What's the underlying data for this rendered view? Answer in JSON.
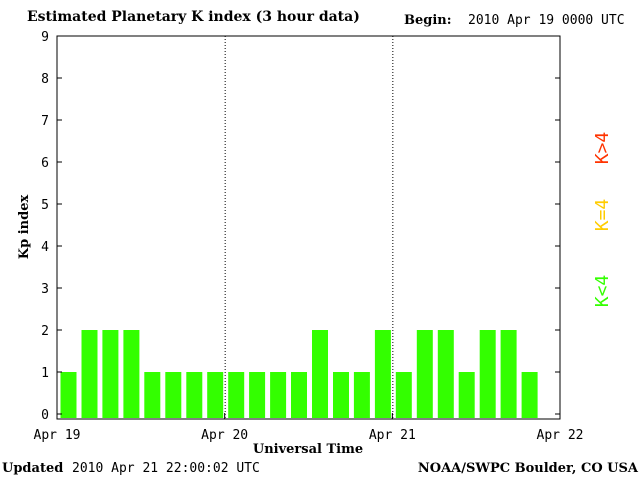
{
  "header": {
    "title": "Estimated Planetary K index (3 hour data)",
    "begin_label": "Begin:",
    "begin_value": "2010 Apr 19 0000 UTC"
  },
  "footer": {
    "updated_label": "Updated",
    "updated_value": "2010 Apr 21 22:00:02 UTC",
    "credit": "NOAA/SWPC Boulder, CO USA"
  },
  "legend": [
    {
      "label": "K>4",
      "color": "#ff3300"
    },
    {
      "label": "K=4",
      "color": "#ffcc00"
    },
    {
      "label": "K<4",
      "color": "#33ff00"
    }
  ],
  "chart_data": {
    "type": "bar",
    "title": "Estimated Planetary K index (3 hour data)",
    "xlabel": "Universal Time",
    "ylabel": "Kp index",
    "x_ticks": [
      "Apr 19",
      "Apr 20",
      "Apr 21",
      "Apr 22"
    ],
    "y_ticks": [
      "0",
      "1",
      "2",
      "3",
      "4",
      "5",
      "6",
      "7",
      "8",
      "9"
    ],
    "ylim": [
      0,
      9
    ],
    "xlim_intervals": 24,
    "interval_hours": 3,
    "values": [
      1,
      2,
      2,
      2,
      1,
      1,
      1,
      1,
      1,
      1,
      1,
      1,
      2,
      1,
      1,
      2,
      1,
      2,
      2,
      1,
      2,
      2,
      1
    ],
    "bar_color": "#33ff00",
    "grid": "dotted day separators",
    "legend_position": "right"
  }
}
